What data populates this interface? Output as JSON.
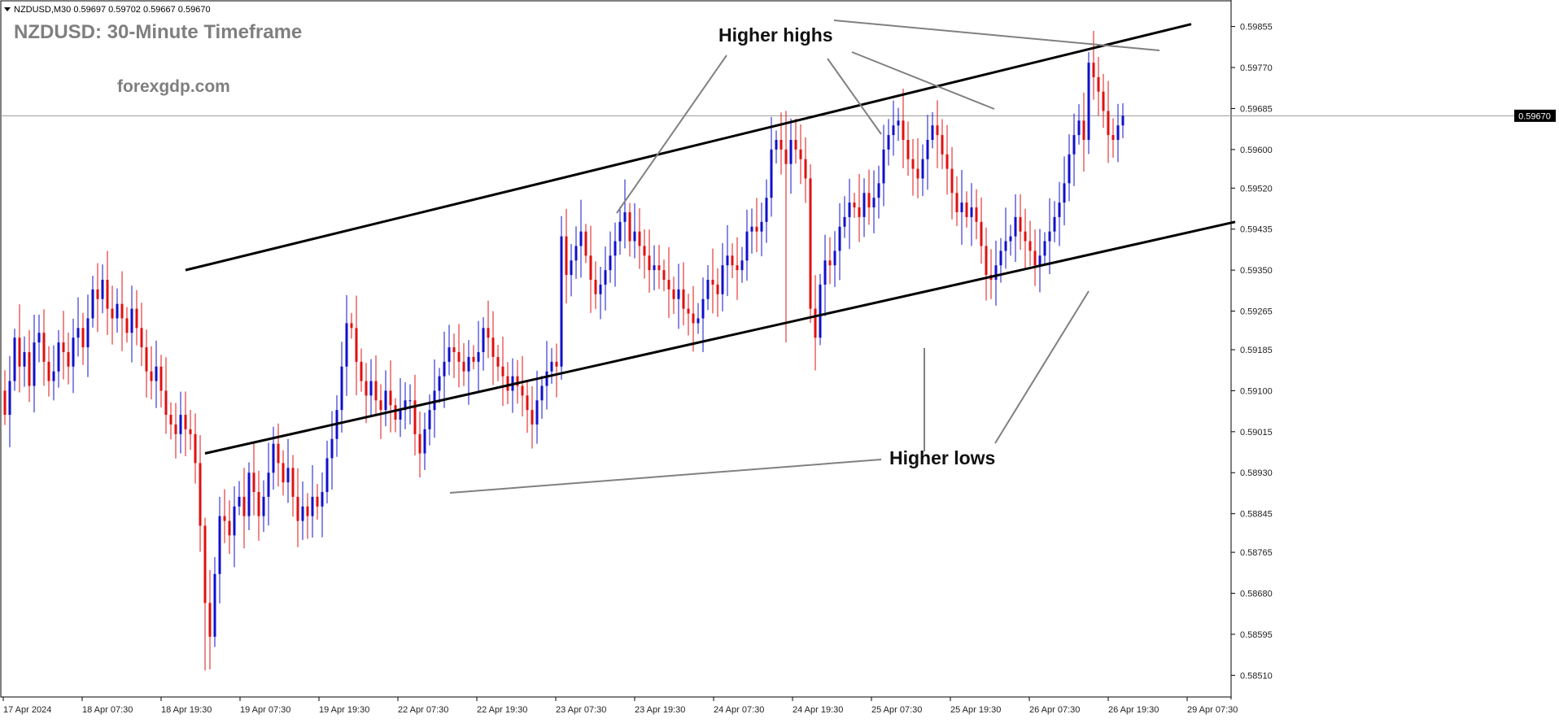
{
  "window": {
    "symbol_info": "NZDUSD,M30  0.59697 0.59702 0.59667 0.59670",
    "title": "NZDUSD: 30-Minute Timeframe",
    "watermark": "forexgdp.com"
  },
  "annotations": {
    "higher_highs": "Higher highs",
    "higher_lows": "Higher lows"
  },
  "colors": {
    "bull": "#1010cc",
    "bear": "#e01010",
    "trendline": "#000000",
    "pointer": "#808080",
    "title": "#7f7f7f",
    "price_line": "#999999"
  },
  "chart_data": {
    "type": "candlestick",
    "symbol": "NZDUSD",
    "timeframe": "M30",
    "current_price": 0.5967,
    "current_price_label": "0.59670",
    "ylim": [
      0.5846,
      0.5991
    ],
    "y_ticks": [
      "0.59855",
      "0.59770",
      "0.59685",
      "0.59600",
      "0.59520",
      "0.59435",
      "0.59350",
      "0.59265",
      "0.59185",
      "0.59100",
      "0.59015",
      "0.58930",
      "0.58845",
      "0.58765",
      "0.58680",
      "0.58595",
      "0.58510"
    ],
    "x_ticks": [
      "17 Apr 2024",
      "18 Apr 07:30",
      "18 Apr 19:30",
      "19 Apr 07:30",
      "19 Apr 19:30",
      "22 Apr 07:30",
      "22 Apr 19:30",
      "23 Apr 07:30",
      "23 Apr 19:30",
      "24 Apr 07:30",
      "24 Apr 19:30",
      "25 Apr 07:30",
      "25 Apr 19:30",
      "26 Apr 07:30",
      "26 Apr 19:30",
      "29 Apr 07:30"
    ],
    "channel": {
      "upper": {
        "from_bar": 37,
        "from_price": 0.5935,
        "to_bar": 243,
        "to_price": 0.5986
      },
      "lower": {
        "from_bar": 41,
        "from_price": 0.5897,
        "to_bar": 252,
        "to_price": 0.5945
      }
    },
    "close": [
      0.5905,
      0.5912,
      0.5921,
      0.5915,
      0.5918,
      0.5911,
      0.592,
      0.5922,
      0.5916,
      0.5912,
      0.5914,
      0.592,
      0.5918,
      0.5915,
      0.5921,
      0.5923,
      0.5919,
      0.5925,
      0.5931,
      0.5929,
      0.5933,
      0.5927,
      0.5925,
      0.5928,
      0.5925,
      0.5922,
      0.5927,
      0.5923,
      0.5919,
      0.5914,
      0.5912,
      0.5915,
      0.591,
      0.5905,
      0.5903,
      0.5901,
      0.5905,
      0.5902,
      0.5901,
      0.5895,
      0.5882,
      0.5866,
      0.5859,
      0.5872,
      0.5884,
      0.5883,
      0.588,
      0.5886,
      0.5888,
      0.5884,
      0.5893,
      0.5889,
      0.5884,
      0.5888,
      0.5893,
      0.5899,
      0.5895,
      0.5891,
      0.5894,
      0.5888,
      0.5883,
      0.5886,
      0.5884,
      0.5888,
      0.5886,
      0.5889,
      0.5896,
      0.59,
      0.5906,
      0.5915,
      0.5924,
      0.5923,
      0.5916,
      0.5912,
      0.5909,
      0.5912,
      0.5908,
      0.5906,
      0.591,
      0.5907,
      0.5904,
      0.5906,
      0.5908,
      0.5908,
      0.5901,
      0.5897,
      0.5902,
      0.5906,
      0.591,
      0.5913,
      0.5916,
      0.5919,
      0.5918,
      0.5916,
      0.5914,
      0.5917,
      0.5916,
      0.5918,
      0.5923,
      0.5921,
      0.5917,
      0.5915,
      0.5913,
      0.591,
      0.5913,
      0.5911,
      0.5909,
      0.5906,
      0.5903,
      0.5908,
      0.5911,
      0.5914,
      0.5916,
      0.5915,
      0.5942,
      0.5934,
      0.5937,
      0.594,
      0.5943,
      0.5938,
      0.5933,
      0.593,
      0.5932,
      0.5935,
      0.5938,
      0.5941,
      0.5945,
      0.5947,
      0.5941,
      0.5943,
      0.594,
      0.5938,
      0.5935,
      0.5936,
      0.5935,
      0.5933,
      0.5931,
      0.5929,
      0.5931,
      0.5927,
      0.5926,
      0.5924,
      0.5925,
      0.5929,
      0.5933,
      0.5932,
      0.593,
      0.5936,
      0.5938,
      0.5936,
      0.5935,
      0.5937,
      0.5943,
      0.5944,
      0.5943,
      0.5945,
      0.595,
      0.596,
      0.5962,
      0.596,
      0.5957,
      0.5962,
      0.596,
      0.5958,
      0.5954,
      0.5927,
      0.5921,
      0.5932,
      0.5937,
      0.5936,
      0.5939,
      0.5944,
      0.5946,
      0.5949,
      0.5948,
      0.5946,
      0.5951,
      0.5948,
      0.595,
      0.5953,
      0.596,
      0.5963,
      0.5965,
      0.5966,
      0.5962,
      0.5958,
      0.5956,
      0.5954,
      0.5958,
      0.5962,
      0.5965,
      0.5963,
      0.5959,
      0.5956,
      0.5951,
      0.5947,
      0.5949,
      0.5946,
      0.5948,
      0.5945,
      0.594,
      0.5934,
      0.5933,
      0.5936,
      0.5939,
      0.5941,
      0.5942,
      0.5946,
      0.5943,
      0.5941,
      0.5939,
      0.5936,
      0.5938,
      0.5941,
      0.5943,
      0.5946,
      0.5949,
      0.5953,
      0.5959,
      0.5963,
      0.5966,
      0.5962,
      0.5978,
      0.5975,
      0.5972,
      0.5968,
      0.5963,
      0.5962,
      0.5965,
      0.5967
    ],
    "intraday_extremes": [
      {
        "bar": 41,
        "low": 0.5852
      },
      {
        "bar": 160,
        "low": 0.592,
        "high": 0.5968
      },
      {
        "bar": 236,
        "high": 0.5982
      }
    ]
  }
}
